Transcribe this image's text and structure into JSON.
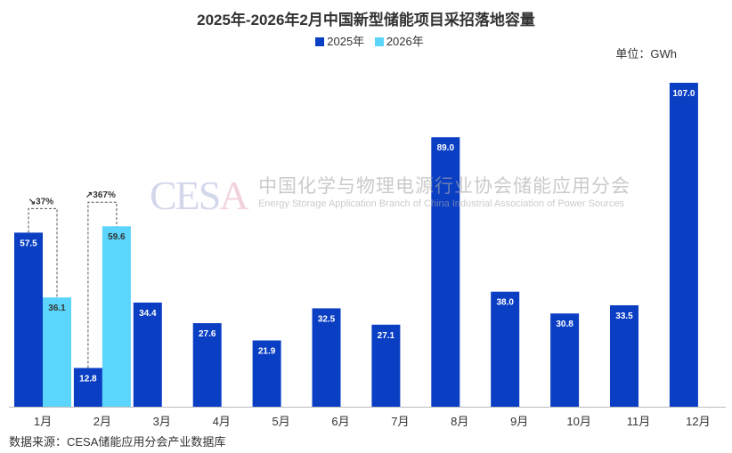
{
  "chart_data": {
    "type": "bar",
    "title": "2025年-2026年2月中国新型储能项目采招落地容量",
    "unit": "单位：GWh",
    "categories": [
      "1月",
      "2月",
      "3月",
      "4月",
      "5月",
      "6月",
      "7月",
      "8月",
      "9月",
      "10月",
      "11月",
      "12月"
    ],
    "series": [
      {
        "name": "2025年",
        "color": "#0a3fc4",
        "values": [
          57.5,
          12.8,
          34.4,
          27.6,
          21.9,
          32.5,
          27.1,
          89.0,
          38.0,
          30.8,
          33.5,
          107.0
        ]
      },
      {
        "name": "2026年",
        "color": "#5bd5fb",
        "values": [
          36.1,
          59.6,
          null,
          null,
          null,
          null,
          null,
          null,
          null,
          null,
          null,
          null
        ]
      }
    ],
    "annotations": [
      {
        "category": "1月",
        "text": "↘37%"
      },
      {
        "category": "2月",
        "text": "↗367%"
      }
    ],
    "ylim": [
      0,
      107
    ],
    "xlabel": "",
    "ylabel": ""
  },
  "watermark": {
    "logo": "CESA",
    "cn": "中国化学与物理电源行业协会储能应用分会",
    "en": "Energy Storage Application Branch of China Industrial Association of Power Sources"
  },
  "source": "数据来源：CESA储能应用分会产业数据库"
}
